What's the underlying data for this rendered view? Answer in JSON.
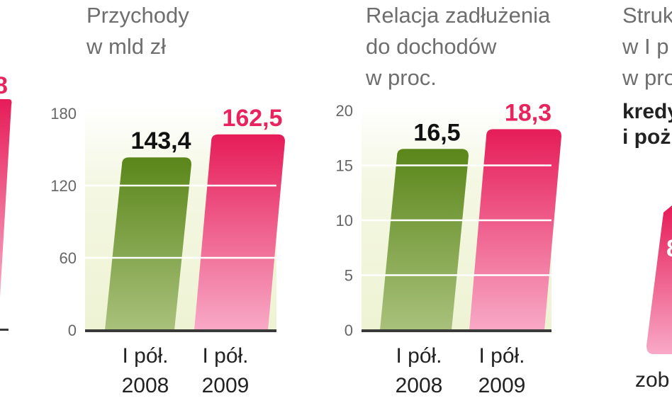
{
  "left_partial": {
    "value_label_fragment": "8"
  },
  "charts": [
    {
      "title_lines": [
        "Przychody",
        "w mld zł"
      ],
      "categories": [
        {
          "line1": "I pół.",
          "line2": "2008"
        },
        {
          "line1": "I pół.",
          "line2": "2009"
        }
      ]
    },
    {
      "title_lines": [
        "Relacja zadłużenia",
        "do dochodów",
        "w proc."
      ],
      "categories": [
        {
          "line1": "I pół.",
          "line2": "2008"
        },
        {
          "line1": "I pół.",
          "line2": "2009"
        }
      ]
    }
  ],
  "right_partial": {
    "title_lines": [
      "Struk",
      "w I p",
      "w proc"
    ],
    "subtitle_lines": [
      "kredy",
      "i poż"
    ],
    "bar_label_fragment": "8",
    "footer_fragment": "zob"
  },
  "chart_data": [
    {
      "type": "bar",
      "title": "Przychody w mld zł",
      "categories": [
        "I pół. 2008",
        "I pół. 2009"
      ],
      "values": [
        143.4,
        162.5
      ],
      "value_labels": [
        "143,4",
        "162,5"
      ],
      "bar_colors": [
        "#5e8a1c",
        "#e8245e"
      ],
      "ylim": [
        0,
        180
      ],
      "yticks": [
        0,
        60,
        120,
        180
      ],
      "ytick_labels": [
        "0",
        "60",
        "120",
        "180"
      ],
      "grid": true
    },
    {
      "type": "bar",
      "title": "Relacja zadłużenia do dochodów w proc.",
      "categories": [
        "I pół. 2008",
        "I pół. 2009"
      ],
      "values": [
        16.5,
        18.3
      ],
      "value_labels": [
        "16,5",
        "18,3"
      ],
      "bar_colors": [
        "#5e8a1c",
        "#e8245e"
      ],
      "ylim": [
        0,
        20
      ],
      "yticks": [
        0,
        5,
        10,
        15,
        20
      ],
      "ytick_labels": [
        "0",
        "5",
        "10",
        "15",
        "20"
      ],
      "grid": true
    }
  ],
  "colors": {
    "green_dark": "#5e8a1c",
    "green_light": "#a7bf78",
    "pink_dark": "#e8245e",
    "pink_light": "#f7a6c4",
    "plot_bg": "#f1f5dc",
    "axis_text": "#666666",
    "title_text": "#6e6e6e"
  }
}
